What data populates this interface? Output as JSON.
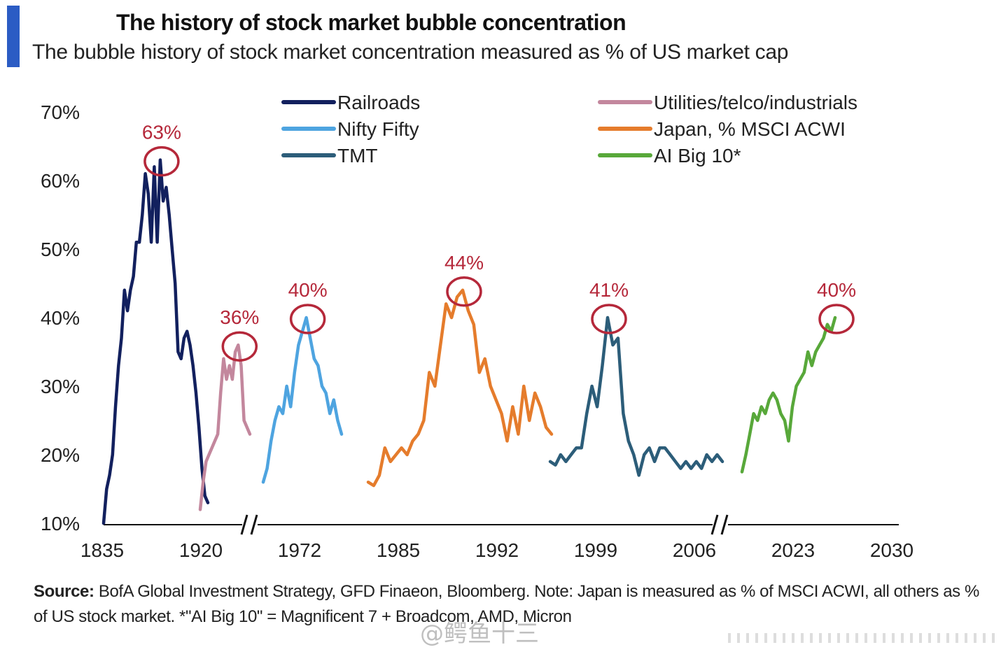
{
  "title": "The history of stock market bubble concentration",
  "subtitle": "The bubble history of stock market concentration measured as % of US market cap",
  "source_label": "Source:",
  "source_text": "BofA Global Investment Strategy, GFD Finaeon, Bloomberg. Note: Japan is measured as % of MSCI ACWI, all others as % of US stock market. *\"AI Big 10\" = Magnificent 7 + Broadcom, AMD, Micron",
  "watermark": "@鳄鱼十三",
  "colors": {
    "accent": "#2b5cc4",
    "highlight_circle": "#b5283a",
    "axis": "#111111"
  },
  "chart_data": {
    "type": "line",
    "title": "The history of stock market bubble concentration",
    "subtitle": "The bubble history of stock market concentration measured as % of US market cap",
    "ylim": [
      0.1,
      0.7
    ],
    "yticks": [
      "10%",
      "20%",
      "30%",
      "40%",
      "50%",
      "60%",
      "70%"
    ],
    "ytick_values": [
      0.1,
      0.2,
      0.3,
      0.4,
      0.5,
      0.6,
      0.7
    ],
    "xticks": [
      "1835",
      "1920",
      "1972",
      "1985",
      "1992",
      "1999",
      "2006",
      "2023",
      "2030"
    ],
    "axis_breaks": "two",
    "grid": false,
    "legend_position": "top",
    "series": [
      {
        "name": "Railroads",
        "color": "#12205e",
        "values": [
          0.1,
          0.15,
          0.17,
          0.2,
          0.27,
          0.33,
          0.37,
          0.44,
          0.41,
          0.44,
          0.46,
          0.51,
          0.51,
          0.55,
          0.61,
          0.58,
          0.51,
          0.62,
          0.51,
          0.63,
          0.57,
          0.59,
          0.55,
          0.5,
          0.45,
          0.35,
          0.34,
          0.37,
          0.38,
          0.36,
          0.33,
          0.29,
          0.24,
          0.18,
          0.14,
          0.13
        ]
      },
      {
        "name": "Utilities/telco/industrials",
        "color": "#c3879d",
        "values": [
          0.12,
          0.16,
          0.19,
          0.2,
          0.21,
          0.22,
          0.23,
          0.29,
          0.34,
          0.31,
          0.33,
          0.31,
          0.35,
          0.36,
          0.33,
          0.25,
          0.24,
          0.23
        ]
      },
      {
        "name": "Nifty Fifty",
        "color": "#4ea4e0",
        "values": [
          0.16,
          0.18,
          0.22,
          0.25,
          0.27,
          0.26,
          0.3,
          0.27,
          0.32,
          0.36,
          0.38,
          0.4,
          0.37,
          0.34,
          0.33,
          0.3,
          0.29,
          0.26,
          0.28,
          0.25,
          0.23
        ]
      },
      {
        "name": "Japan, % MSCI ACWI",
        "color": "#e57c2c",
        "values": [
          0.16,
          0.155,
          0.17,
          0.21,
          0.19,
          0.2,
          0.21,
          0.2,
          0.22,
          0.23,
          0.25,
          0.32,
          0.3,
          0.36,
          0.42,
          0.4,
          0.43,
          0.44,
          0.41,
          0.39,
          0.32,
          0.34,
          0.3,
          0.28,
          0.26,
          0.22,
          0.27,
          0.23,
          0.3,
          0.25,
          0.29,
          0.27,
          0.24,
          0.23
        ]
      },
      {
        "name": "TMT",
        "color": "#2c5d79",
        "values": [
          0.19,
          0.185,
          0.2,
          0.19,
          0.2,
          0.21,
          0.21,
          0.26,
          0.3,
          0.27,
          0.33,
          0.4,
          0.36,
          0.37,
          0.26,
          0.22,
          0.2,
          0.17,
          0.2,
          0.21,
          0.19,
          0.21,
          0.21,
          0.2,
          0.19,
          0.18,
          0.19,
          0.18,
          0.19,
          0.18,
          0.2,
          0.19,
          0.2,
          0.19
        ]
      },
      {
        "name": "AI Big 10*",
        "color": "#58a83a",
        "values": [
          0.175,
          0.2,
          0.23,
          0.26,
          0.25,
          0.27,
          0.26,
          0.28,
          0.29,
          0.28,
          0.26,
          0.25,
          0.22,
          0.27,
          0.3,
          0.31,
          0.32,
          0.35,
          0.33,
          0.35,
          0.36,
          0.37,
          0.39,
          0.38,
          0.4
        ]
      }
    ],
    "annotations": [
      {
        "text": "63%",
        "series": "Railroads",
        "value": 0.63
      },
      {
        "text": "36%",
        "series": "Utilities/telco/industrials",
        "value": 0.36
      },
      {
        "text": "40%",
        "series": "Nifty Fifty",
        "value": 0.4
      },
      {
        "text": "44%",
        "series": "Japan, % MSCI ACWI",
        "value": 0.44
      },
      {
        "text": "41%",
        "series": "TMT",
        "value": 0.41
      },
      {
        "text": "40%",
        "series": "AI Big 10*",
        "value": 0.4
      }
    ]
  }
}
